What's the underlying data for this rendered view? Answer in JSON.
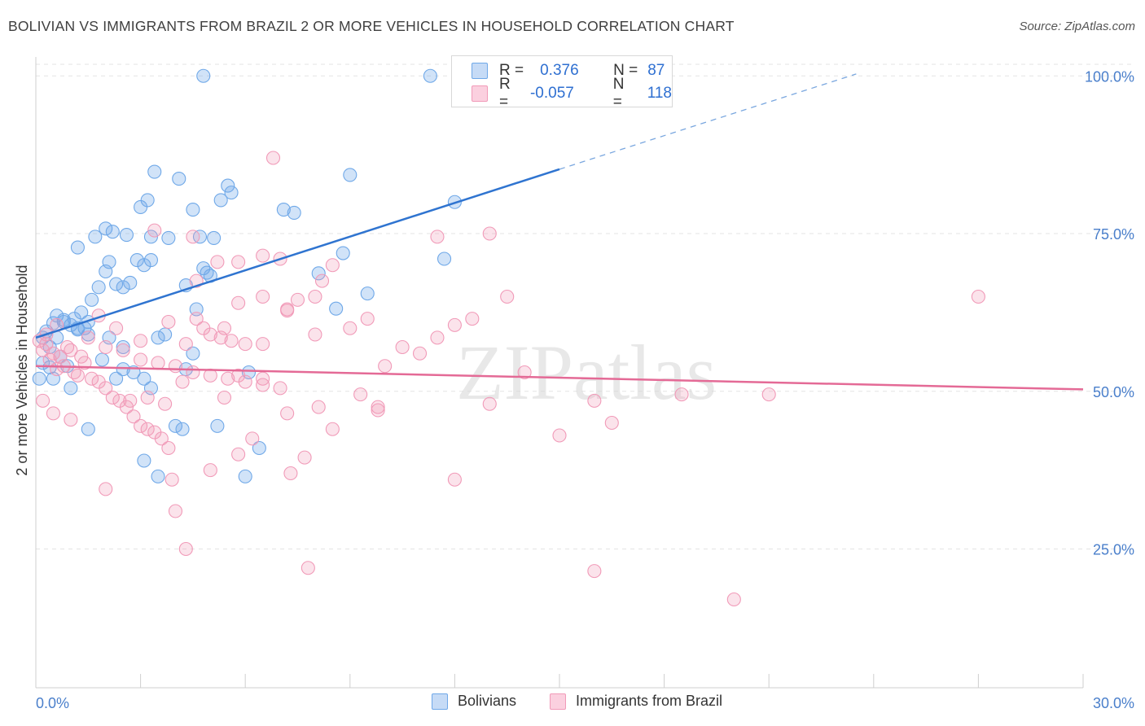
{
  "header": {
    "title": "BOLIVIAN VS IMMIGRANTS FROM BRAZIL 2 OR MORE VEHICLES IN HOUSEHOLD CORRELATION CHART",
    "source": "Source: ZipAtlas.com"
  },
  "watermark": "ZIPatlas",
  "stats": [
    {
      "r_label": "R =",
      "r_value": "0.376",
      "n_label": "N =",
      "n_value": "87",
      "color": "#6fa8e8"
    },
    {
      "r_label": "R =",
      "r_value": "-0.057",
      "n_label": "N =",
      "n_value": "118",
      "color": "#f19ab8"
    }
  ],
  "chart_data": {
    "type": "scatter",
    "title": "BOLIVIAN VS IMMIGRANTS FROM BRAZIL 2 OR MORE VEHICLES IN HOUSEHOLD CORRELATION CHART",
    "xlabel": "",
    "ylabel": "2 or more Vehicles in Household",
    "xlim": [
      0,
      30
    ],
    "ylim": [
      3,
      103
    ],
    "x_tick_labels": [
      "0.0%",
      "30.0%"
    ],
    "y_ticks": [
      25,
      50,
      75,
      100
    ],
    "y_tick_labels": [
      "25.0%",
      "50.0%",
      "75.0%",
      "100.0%"
    ],
    "grid": true,
    "legend_position": "bottom-center",
    "series": [
      {
        "name": "Bolivians",
        "color": "#6fa8e8",
        "trend": {
          "x0": 0,
          "y0": 58.5,
          "x1": 15.0,
          "y1": 85.2,
          "dash_to_x": 23.5,
          "dash_to_y": 100.3
        },
        "points": [
          [
            0.2,
            58.5
          ],
          [
            0.3,
            59.5
          ],
          [
            0.5,
            60.8
          ],
          [
            0.6,
            62.0
          ],
          [
            0.8,
            61.3
          ],
          [
            1.0,
            60.5
          ],
          [
            1.1,
            61.5
          ],
          [
            1.2,
            59.8
          ],
          [
            0.4,
            57.0
          ],
          [
            0.7,
            55.5
          ],
          [
            0.9,
            54.0
          ],
          [
            0.2,
            54.5
          ],
          [
            0.5,
            52.0
          ],
          [
            1.3,
            62.5
          ],
          [
            1.5,
            61.0
          ],
          [
            1.6,
            64.5
          ],
          [
            1.8,
            66.5
          ],
          [
            2.0,
            69.0
          ],
          [
            2.1,
            70.5
          ],
          [
            2.3,
            67.0
          ],
          [
            2.5,
            66.5
          ],
          [
            2.7,
            67.2
          ],
          [
            2.9,
            70.8
          ],
          [
            3.1,
            70.0
          ],
          [
            3.3,
            70.8
          ],
          [
            1.2,
            72.8
          ],
          [
            1.7,
            74.5
          ],
          [
            2.0,
            75.8
          ],
          [
            2.2,
            75.3
          ],
          [
            2.6,
            74.8
          ],
          [
            3.3,
            74.5
          ],
          [
            3.0,
            79.2
          ],
          [
            3.2,
            80.3
          ],
          [
            3.4,
            84.8
          ],
          [
            4.1,
            83.7
          ],
          [
            4.5,
            78.8
          ],
          [
            4.7,
            74.5
          ],
          [
            3.8,
            74.3
          ],
          [
            4.3,
            66.8
          ],
          [
            4.6,
            63.0
          ],
          [
            4.8,
            69.5
          ],
          [
            4.9,
            68.8
          ],
          [
            5.0,
            68.3
          ],
          [
            5.1,
            74.3
          ],
          [
            5.3,
            80.3
          ],
          [
            5.5,
            82.6
          ],
          [
            5.6,
            81.5
          ],
          [
            6.1,
            53.0
          ],
          [
            7.1,
            78.8
          ],
          [
            7.4,
            78.3
          ],
          [
            8.1,
            68.7
          ],
          [
            8.6,
            63.1
          ],
          [
            8.8,
            71.9
          ],
          [
            9.5,
            65.5
          ],
          [
            11.7,
            71.0
          ],
          [
            12.0,
            80.0
          ],
          [
            11.3,
            100.0
          ],
          [
            4.8,
            100.0
          ],
          [
            9.0,
            84.3
          ],
          [
            1.2,
            60.0
          ],
          [
            1.9,
            55.0
          ],
          [
            2.3,
            52.0
          ],
          [
            2.5,
            53.5
          ],
          [
            2.8,
            53.0
          ],
          [
            3.1,
            52.0
          ],
          [
            3.3,
            50.5
          ],
          [
            1.0,
            50.5
          ],
          [
            1.5,
            44.0
          ],
          [
            3.1,
            39.0
          ],
          [
            3.5,
            36.5
          ],
          [
            4.0,
            44.5
          ],
          [
            4.2,
            44.0
          ],
          [
            4.3,
            53.5
          ],
          [
            4.5,
            56.0
          ],
          [
            5.2,
            44.5
          ],
          [
            6.0,
            36.5
          ],
          [
            6.4,
            41.0
          ],
          [
            3.5,
            58.5
          ],
          [
            2.1,
            58.5
          ],
          [
            0.4,
            53.8
          ],
          [
            1.5,
            59.0
          ],
          [
            0.1,
            52.0
          ],
          [
            0.8,
            61.0
          ],
          [
            1.4,
            60.0
          ],
          [
            0.6,
            58.5
          ],
          [
            2.5,
            57.0
          ],
          [
            3.7,
            59.0
          ]
        ]
      },
      {
        "name": "Immigrants from Brazil",
        "color": "#f19ab8",
        "trend": {
          "x0": 0,
          "y0": 54.0,
          "x1": 30,
          "y1": 50.3
        },
        "points": [
          [
            0.1,
            58.0
          ],
          [
            0.2,
            56.5
          ],
          [
            0.3,
            57.5
          ],
          [
            0.4,
            55.0
          ],
          [
            0.5,
            56.0
          ],
          [
            0.6,
            53.5
          ],
          [
            0.7,
            55.5
          ],
          [
            0.8,
            54.0
          ],
          [
            0.9,
            57.0
          ],
          [
            1.0,
            56.5
          ],
          [
            1.1,
            53.0
          ],
          [
            1.3,
            55.5
          ],
          [
            1.4,
            54.5
          ],
          [
            1.6,
            52.0
          ],
          [
            1.8,
            51.5
          ],
          [
            2.0,
            50.5
          ],
          [
            2.2,
            49.0
          ],
          [
            2.4,
            48.5
          ],
          [
            2.6,
            47.5
          ],
          [
            2.8,
            46.0
          ],
          [
            3.0,
            44.5
          ],
          [
            3.2,
            44.0
          ],
          [
            3.4,
            43.5
          ],
          [
            3.6,
            42.5
          ],
          [
            3.8,
            41.0
          ],
          [
            0.2,
            48.5
          ],
          [
            0.5,
            46.5
          ],
          [
            1.0,
            45.5
          ],
          [
            1.5,
            58.5
          ],
          [
            2.0,
            57.0
          ],
          [
            2.5,
            56.5
          ],
          [
            3.0,
            55.0
          ],
          [
            3.5,
            54.5
          ],
          [
            4.0,
            54.0
          ],
          [
            4.5,
            53.0
          ],
          [
            5.0,
            52.5
          ],
          [
            5.5,
            52.0
          ],
          [
            6.0,
            51.5
          ],
          [
            6.5,
            51.0
          ],
          [
            7.0,
            50.5
          ],
          [
            4.6,
            61.5
          ],
          [
            4.8,
            60.0
          ],
          [
            5.0,
            59.0
          ],
          [
            5.3,
            58.5
          ],
          [
            5.6,
            58.0
          ],
          [
            6.0,
            57.5
          ],
          [
            6.5,
            57.5
          ],
          [
            7.2,
            62.8
          ],
          [
            7.5,
            64.5
          ],
          [
            8.0,
            65.0
          ],
          [
            8.2,
            67.5
          ],
          [
            8.5,
            70.0
          ],
          [
            9.0,
            60.0
          ],
          [
            9.5,
            61.5
          ],
          [
            10.0,
            54.0
          ],
          [
            10.5,
            57.0
          ],
          [
            11.0,
            56.0
          ],
          [
            11.5,
            58.5
          ],
          [
            12.0,
            60.5
          ],
          [
            12.5,
            61.5
          ],
          [
            13.0,
            48.0
          ],
          [
            14.0,
            53.0
          ],
          [
            15.0,
            43.0
          ],
          [
            16.0,
            48.5
          ],
          [
            16.5,
            45.0
          ],
          [
            18.5,
            49.5
          ],
          [
            20.0,
            17.0
          ],
          [
            21.0,
            49.5
          ],
          [
            27.0,
            65.0
          ],
          [
            16.0,
            21.5
          ],
          [
            13.5,
            65.0
          ],
          [
            13.0,
            75.0
          ],
          [
            11.5,
            74.5
          ],
          [
            6.8,
            87.0
          ],
          [
            7.0,
            71.0
          ],
          [
            6.5,
            71.5
          ],
          [
            5.8,
            70.5
          ],
          [
            4.5,
            74.5
          ],
          [
            3.4,
            75.5
          ],
          [
            4.6,
            67.5
          ],
          [
            5.2,
            70.5
          ],
          [
            5.8,
            64.0
          ],
          [
            6.5,
            65.0
          ],
          [
            7.2,
            63.0
          ],
          [
            8.0,
            59.0
          ],
          [
            9.3,
            49.5
          ],
          [
            3.0,
            58.0
          ],
          [
            1.8,
            62.0
          ],
          [
            2.3,
            60.0
          ],
          [
            3.8,
            61.0
          ],
          [
            4.3,
            57.5
          ],
          [
            5.4,
            60.0
          ],
          [
            2.0,
            34.5
          ],
          [
            3.9,
            36.0
          ],
          [
            4.0,
            31.0
          ],
          [
            4.3,
            25.0
          ],
          [
            5.0,
            37.5
          ],
          [
            5.8,
            40.0
          ],
          [
            6.2,
            42.5
          ],
          [
            7.3,
            37.0
          ],
          [
            7.7,
            39.5
          ],
          [
            7.8,
            22.0
          ],
          [
            8.5,
            44.0
          ],
          [
            9.8,
            47.5
          ],
          [
            12.0,
            36.0
          ],
          [
            3.7,
            48.0
          ],
          [
            5.4,
            49.0
          ],
          [
            6.5,
            52.0
          ],
          [
            2.7,
            48.5
          ],
          [
            3.2,
            49.0
          ],
          [
            4.2,
            51.5
          ],
          [
            5.8,
            52.5
          ],
          [
            7.2,
            46.5
          ],
          [
            8.1,
            47.5
          ],
          [
            9.8,
            47.0
          ],
          [
            0.3,
            59.0
          ],
          [
            0.6,
            60.5
          ],
          [
            1.2,
            52.5
          ]
        ]
      }
    ]
  },
  "legend": {
    "items": [
      {
        "label": "Bolivians",
        "color": "#6fa8e8"
      },
      {
        "label": "Immigrants from Brazil",
        "color": "#f19ab8"
      }
    ]
  }
}
